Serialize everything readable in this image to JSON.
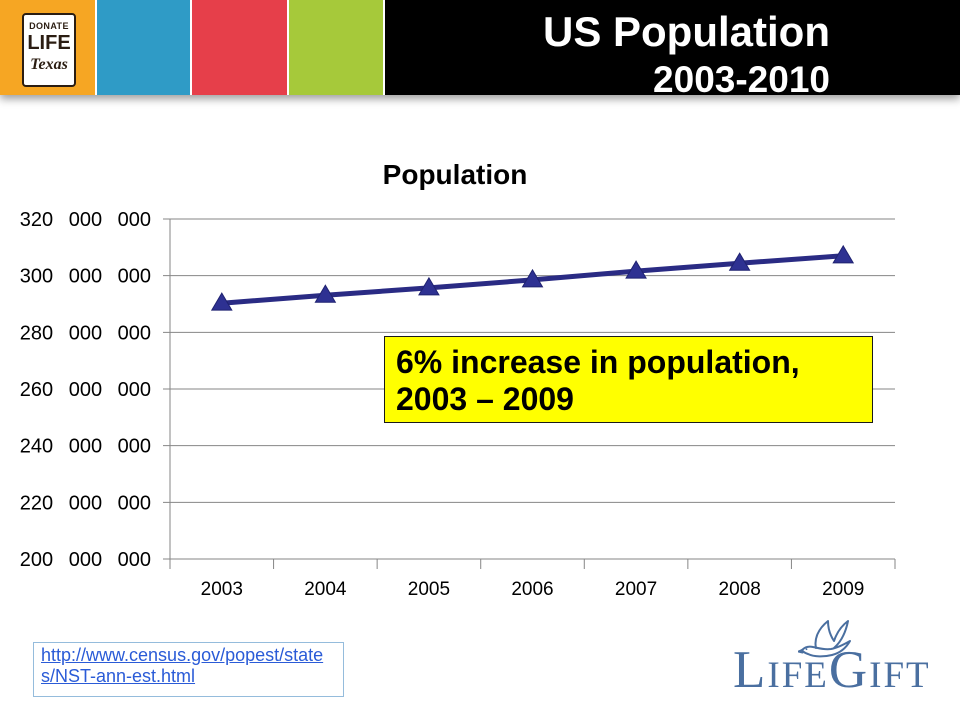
{
  "header": {
    "title": "US Population",
    "subtitle": "2003-2010",
    "logo": {
      "line1": "DONATE",
      "line2": "LIFE",
      "line3": "Texas"
    },
    "colors": {
      "orange": "#F6A623",
      "blue": "#2F9BC6",
      "red": "#E63F4A",
      "green": "#A6C93A",
      "band": "#000000"
    }
  },
  "chart_data": {
    "type": "line",
    "title": "Population",
    "categories": [
      "2003",
      "2004",
      "2005",
      "2006",
      "2007",
      "2008",
      "2009"
    ],
    "values": [
      290300000,
      293100000,
      295700000,
      298500000,
      301600000,
      304400000,
      307000000
    ],
    "ylim": [
      200000000,
      320000000
    ],
    "yticks": [
      200000000,
      220000000,
      240000000,
      260000000,
      280000000,
      300000000,
      320000000
    ],
    "ytick_labels": [
      "200 000 000",
      "220 000 000",
      "240 000 000",
      "260 000 000",
      "280 000 000",
      "300 000 000",
      "320 000 000"
    ],
    "grid": true,
    "line_color": "#2A2B84",
    "marker_color": "#2E3192",
    "annotation": {
      "lines": [
        "6% increase in population,",
        "2003 – 2009"
      ],
      "background": "#FFFF00"
    }
  },
  "source_link": {
    "line1": "http://www.census.gov/popest/state",
    "line2": "s/NST-ann-est.html",
    "color": "#2A5BD7"
  },
  "brand": {
    "name": "LifeGift",
    "icon": "dove-icon",
    "color": "#4A6FA0"
  }
}
